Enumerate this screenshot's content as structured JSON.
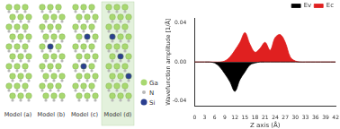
{
  "diagram": {
    "models": [
      {
        "label": "Model (a)"
      },
      {
        "label": "Model (b)"
      },
      {
        "label": "Model (c)"
      },
      {
        "label": "Model (d)"
      }
    ],
    "highlighted": "Model (d)",
    "atoms": [
      {
        "symbol": "Ga",
        "color": "#a8d870"
      },
      {
        "symbol": "N",
        "color": "#b8b8b8"
      },
      {
        "symbol": "Si",
        "color": "#2b3f8f"
      }
    ]
  },
  "chart_data": {
    "type": "line",
    "x_label": "Z axis (Å)",
    "y_label": "Wavefunction amplitude [1/Å]",
    "x": [
      0,
      1.5,
      3,
      4.5,
      6,
      7.5,
      9,
      10.5,
      12,
      13.5,
      15,
      16.5,
      18,
      19.5,
      21,
      22.5,
      24,
      25.5,
      27,
      28.5,
      30,
      31.5,
      33,
      34.5,
      36,
      37.5,
      39,
      40.5,
      42
    ],
    "series": [
      {
        "name": "Ev",
        "color": "#000000",
        "values": [
          0,
          0,
          0,
          0,
          -0.001,
          -0.005,
          -0.012,
          -0.02,
          -0.03,
          -0.018,
          -0.01,
          -0.003,
          -0.001,
          0,
          0,
          0,
          0,
          0,
          0,
          0,
          0,
          0,
          0,
          0,
          0,
          0,
          0,
          0,
          0
        ]
      },
      {
        "name": "Ec",
        "color": "#e02020",
        "values": [
          0,
          0,
          0,
          0,
          0,
          0,
          0.001,
          0.005,
          0.012,
          0.02,
          0.03,
          0.018,
          0.01,
          0.014,
          0.02,
          0.012,
          0.025,
          0.028,
          0.02,
          0.005,
          0.001,
          0,
          0,
          0,
          0,
          0,
          0,
          0,
          0
        ]
      }
    ],
    "xlim": [
      0,
      42
    ],
    "xticks": [
      0,
      3,
      6,
      9,
      12,
      15,
      18,
      21,
      24,
      27,
      30,
      33,
      36,
      39,
      42
    ],
    "ylim": [
      -0.045,
      0.045
    ],
    "yticks": [
      -0.04,
      {
        "value": 0,
        "label": "0.00"
      },
      0.04
    ],
    "legend": "top-right",
    "grid": false
  }
}
